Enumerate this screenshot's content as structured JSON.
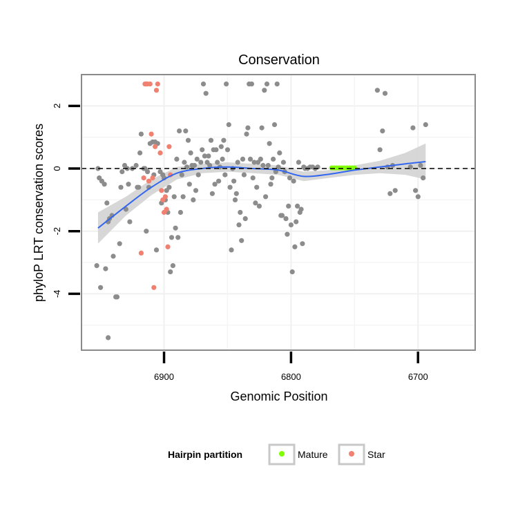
{
  "chart_data": {
    "type": "scatter",
    "title": "Conservation",
    "xlabel": "Genomic Position",
    "ylabel": "phyloP LRT conservation scores",
    "x_reversed": true,
    "xlim": [
      6965,
      6655
    ],
    "ylim": [
      -5.8,
      3.0
    ],
    "x_ticks": [
      6900,
      6800,
      6700
    ],
    "y_ticks": [
      -4,
      -2,
      0,
      2
    ],
    "reference_line": {
      "y": 0,
      "style": "dashed",
      "color": "#000000"
    },
    "grid": true,
    "legend": {
      "title": "Hairpin partition",
      "placement": "bottom",
      "entries": [
        {
          "label": "Mature",
          "color": "#7fff00"
        },
        {
          "label": "Star",
          "color": "#f08070"
        }
      ]
    },
    "colors": {
      "other": "#8c8c8c",
      "mature": "#7fff00",
      "star": "#f08070",
      "smooth": "#3366ee",
      "band": "#d3d3d3"
    },
    "series": [
      {
        "group": "other",
        "points": [
          [
            6952,
            0
          ],
          [
            6951,
            -0.3
          ],
          [
            6949,
            -0.4
          ],
          [
            6947,
            -0.5
          ],
          [
            6944,
            -1.7
          ],
          [
            6943,
            -1.6
          ],
          [
            6940,
            -2.8
          ],
          [
            6938,
            -4.1
          ],
          [
            6937,
            -4.1
          ],
          [
            6950,
            -3.8
          ],
          [
            6946,
            -3.2
          ],
          [
            6944,
            -5.4
          ],
          [
            6953,
            -3.1
          ],
          [
            6935,
            -2.4
          ],
          [
            6933,
            -0.1
          ],
          [
            6930,
            -1.3
          ],
          [
            6929,
            0
          ],
          [
            6928,
            -0.5
          ],
          [
            6925,
            0
          ],
          [
            6922,
            0.1
          ],
          [
            6920,
            -0.6
          ],
          [
            6918,
            1.1
          ],
          [
            6916,
            0
          ],
          [
            6915,
            0
          ],
          [
            6913,
            -0.1
          ],
          [
            6911,
            0.8
          ],
          [
            6909,
            0.85
          ],
          [
            6907,
            0.85
          ],
          [
            6905,
            0.8
          ],
          [
            6903,
            -0.1
          ],
          [
            6901,
            -0.2
          ],
          [
            6899,
            -1.0
          ],
          [
            6897,
            -1.4
          ],
          [
            6895,
            -3.3
          ],
          [
            6893,
            -3.1
          ],
          [
            6891,
            -1.9
          ],
          [
            6889,
            -2.2
          ],
          [
            6887,
            -1.4
          ],
          [
            6885,
            -0.9
          ],
          [
            6883,
            1.2
          ],
          [
            6881,
            0.9
          ],
          [
            6879,
            0.5
          ],
          [
            6877,
            -1.0
          ],
          [
            6875,
            -0.7
          ],
          [
            6873,
            -0.2
          ],
          [
            6871,
            0.2
          ],
          [
            6869,
            2.7
          ],
          [
            6867,
            2.4
          ],
          [
            6865,
            0.4
          ],
          [
            6863,
            0.9
          ],
          [
            6861,
            0.6
          ],
          [
            6859,
            0.6
          ],
          [
            6857,
            -0.4
          ],
          [
            6855,
            0.7
          ],
          [
            6853,
            0.9
          ],
          [
            6851,
            2.7
          ],
          [
            6849,
            1.4
          ],
          [
            6847,
            -2.6
          ],
          [
            6845,
            -0.4
          ],
          [
            6843,
            -0.8
          ],
          [
            6841,
            -1.8
          ],
          [
            6839,
            -2.3
          ],
          [
            6837,
            -0.2
          ],
          [
            6835,
            1.1
          ],
          [
            6833,
            2.7
          ],
          [
            6831,
            2.7
          ],
          [
            6829,
            0.2
          ],
          [
            6827,
            -0.6
          ],
          [
            6825,
            -1.2
          ],
          [
            6823,
            1.3
          ],
          [
            6821,
            2.5
          ],
          [
            6819,
            2.7
          ],
          [
            6817,
            0.8
          ],
          [
            6815,
            -0.3
          ],
          [
            6813,
            1.4
          ],
          [
            6811,
            2.7
          ],
          [
            6809,
            0.5
          ],
          [
            6807,
            -1.5
          ],
          [
            6805,
            -0.1
          ],
          [
            6803,
            -2.1
          ],
          [
            6801,
            -0.3
          ],
          [
            6799,
            -3.3
          ],
          [
            6797,
            -2.5
          ],
          [
            6795,
            -1.2
          ],
          [
            6793,
            -1.4
          ],
          [
            6791,
            -2.4
          ],
          [
            6789,
            0
          ],
          [
            6787,
            0
          ],
          [
            6785,
            0.05
          ],
          [
            6783,
            0.05
          ],
          [
            6781,
            0
          ],
          [
            6779,
            0.05
          ],
          [
            6732,
            2.5
          ],
          [
            6730,
            0.6
          ],
          [
            6728,
            1.2
          ],
          [
            6726,
            2.4
          ],
          [
            6724,
            0.05
          ],
          [
            6722,
            -0.8
          ],
          [
            6720,
            0.1
          ],
          [
            6718,
            -0.7
          ],
          [
            6706,
            0.05
          ],
          [
            6704,
            1.3
          ],
          [
            6702,
            -0.7
          ],
          [
            6700,
            -0.9
          ],
          [
            6698,
            0.1
          ],
          [
            6696,
            -0.3
          ],
          [
            6694,
            1.4
          ],
          [
            6945,
            -1.1
          ],
          [
            6941,
            -1.5
          ],
          [
            6934,
            -0.6
          ],
          [
            6931,
            0.1
          ],
          [
            6927,
            -1.7
          ],
          [
            6921,
            -0.6
          ],
          [
            6919,
            0.5
          ],
          [
            6914,
            -2.0
          ],
          [
            6912,
            -0.6
          ],
          [
            6908,
            -0.2
          ],
          [
            6906,
            -2.6
          ],
          [
            6902,
            -1.1
          ],
          [
            6900,
            -0.3
          ],
          [
            6898,
            -0.7
          ],
          [
            6896,
            -0.6
          ],
          [
            6894,
            -2.2
          ],
          [
            6892,
            -0.9
          ],
          [
            6890,
            0.3
          ],
          [
            6888,
            1.2
          ],
          [
            6886,
            -0.2
          ],
          [
            6884,
            0.2
          ],
          [
            6882,
            0.05
          ],
          [
            6880,
            -0.5
          ],
          [
            6878,
            0.1
          ],
          [
            6876,
            0.1
          ],
          [
            6874,
            0.3
          ],
          [
            6870,
            0.6
          ],
          [
            6868,
            0.4
          ],
          [
            6866,
            0.2
          ],
          [
            6864,
            0.1
          ],
          [
            6862,
            -0.8
          ],
          [
            6860,
            -0.5
          ],
          [
            6858,
            0.2
          ],
          [
            6856,
            0.05
          ],
          [
            6854,
            0.3
          ],
          [
            6852,
            -0.2
          ],
          [
            6850,
            0.6
          ],
          [
            6848,
            -0.6
          ],
          [
            6846,
            0
          ],
          [
            6844,
            -1.0
          ],
          [
            6842,
            0.2
          ],
          [
            6840,
            -1.4
          ],
          [
            6838,
            0.3
          ],
          [
            6836,
            -1.6
          ],
          [
            6834,
            1.3
          ],
          [
            6832,
            0.3
          ],
          [
            6830,
            -0.3
          ],
          [
            6828,
            -1.1
          ],
          [
            6826,
            0.2
          ],
          [
            6824,
            0.3
          ],
          [
            6822,
            0.1
          ],
          [
            6820,
            -0.9
          ],
          [
            6818,
            0.1
          ],
          [
            6816,
            -0.5
          ],
          [
            6814,
            0.3
          ],
          [
            6812,
            -0.1
          ],
          [
            6810,
            0.05
          ],
          [
            6808,
            -1.5
          ],
          [
            6806,
            0.2
          ],
          [
            6804,
            -1.6
          ],
          [
            6802,
            -1.2
          ],
          [
            6800,
            -1.8
          ],
          [
            6798,
            -0.4
          ],
          [
            6796,
            -1.7
          ],
          [
            6794,
            0.2
          ],
          [
            6792,
            -1.3
          ],
          [
            6790,
            0.05
          ]
        ]
      },
      {
        "group": "star",
        "points": [
          [
            6918,
            -2.7
          ],
          [
            6915,
            2.7
          ],
          [
            6914,
            2.7
          ],
          [
            6913,
            2.7
          ],
          [
            6911,
            2.7
          ],
          [
            6910,
            1.1
          ],
          [
            6909,
            -0.3
          ],
          [
            6908,
            -3.8
          ],
          [
            6907,
            0.7
          ],
          [
            6906,
            2.5
          ],
          [
            6905,
            2.7
          ],
          [
            6903,
            0.5
          ],
          [
            6902,
            -0.7
          ],
          [
            6901,
            -1.0
          ],
          [
            6900,
            -1.4
          ],
          [
            6899,
            -0.9
          ],
          [
            6898,
            -1.3
          ],
          [
            6897,
            -2.5
          ],
          [
            6896,
            0.7
          ],
          [
            6895,
            -0.2
          ],
          [
            6912,
            -0.4
          ],
          [
            6916,
            -0.3
          ]
        ]
      },
      {
        "group": "mature",
        "points": [
          [
            6768,
            0.02
          ],
          [
            6766,
            0.02
          ],
          [
            6764,
            0.02
          ],
          [
            6762,
            0.02
          ],
          [
            6760,
            0.02
          ],
          [
            6758,
            0.02
          ],
          [
            6756,
            0.02
          ],
          [
            6754,
            0.02
          ],
          [
            6752,
            0.02
          ],
          [
            6750,
            0.02
          ]
        ]
      }
    ],
    "smooth": {
      "x": [
        6952,
        6930,
        6910,
        6890,
        6870,
        6850,
        6830,
        6810,
        6790,
        6770,
        6750,
        6730,
        6710,
        6694
      ],
      "y": [
        -1.9,
        -1.2,
        -0.6,
        -0.15,
        0.0,
        0.05,
        0.0,
        -0.05,
        -0.25,
        -0.18,
        -0.05,
        0.05,
        0.15,
        0.22
      ],
      "lower": [
        -2.4,
        -1.5,
        -0.85,
        -0.35,
        -0.15,
        -0.1,
        -0.15,
        -0.2,
        -0.4,
        -0.3,
        -0.2,
        -0.15,
        -0.2,
        -0.35
      ],
      "upper": [
        -1.4,
        -0.9,
        -0.35,
        0.05,
        0.15,
        0.2,
        0.15,
        0.1,
        -0.1,
        -0.05,
        0.1,
        0.25,
        0.5,
        0.8
      ]
    }
  }
}
